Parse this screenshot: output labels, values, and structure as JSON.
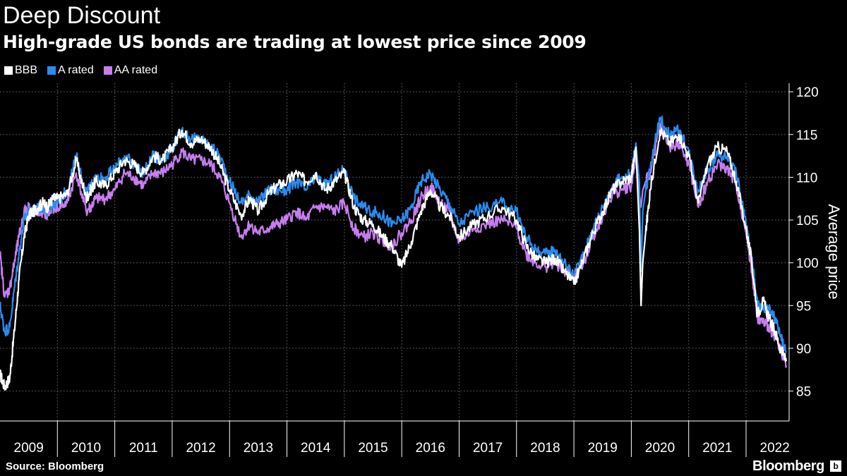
{
  "title": "Deep Discount",
  "subtitle": "High-grade US bonds are trading at lowest price since 2009",
  "source": "Source: Bloomberg",
  "brand": "Bloomberg",
  "brand_badge": "b",
  "chart_data": {
    "type": "line",
    "title": "Deep Discount",
    "subtitle": "High-grade US bonds are trading at lowest price since 2009",
    "xlabel": "",
    "ylabel": "Average price",
    "ylim": [
      81.5,
      121
    ],
    "xlim": [
      2009.0,
      2022.75
    ],
    "y_ticks": [
      85,
      90,
      95,
      100,
      105,
      110,
      115,
      120
    ],
    "x_ticks": [
      "2009",
      "2010",
      "2011",
      "2012",
      "2013",
      "2014",
      "2015",
      "2016",
      "2017",
      "2018",
      "2019",
      "2020",
      "2021",
      "2022"
    ],
    "grid": true,
    "legend_position": "top-left",
    "x": [
      2009.0,
      2009.08,
      2009.17,
      2009.25,
      2009.33,
      2009.42,
      2009.5,
      2009.58,
      2009.67,
      2009.75,
      2009.83,
      2009.92,
      2010.0,
      2010.17,
      2010.33,
      2010.5,
      2010.58,
      2010.67,
      2010.83,
      2011.0,
      2011.17,
      2011.33,
      2011.5,
      2011.67,
      2011.83,
      2012.0,
      2012.17,
      2012.33,
      2012.5,
      2012.67,
      2012.83,
      2013.0,
      2013.2,
      2013.35,
      2013.5,
      2013.67,
      2013.83,
      2014.0,
      2014.17,
      2014.33,
      2014.5,
      2014.67,
      2014.83,
      2015.0,
      2015.17,
      2015.33,
      2015.5,
      2015.67,
      2015.83,
      2016.0,
      2016.17,
      2016.33,
      2016.5,
      2016.67,
      2016.83,
      2017.0,
      2017.25,
      2017.5,
      2017.75,
      2018.0,
      2018.17,
      2018.33,
      2018.5,
      2018.67,
      2018.83,
      2019.0,
      2019.17,
      2019.33,
      2019.5,
      2019.67,
      2019.83,
      2020.0,
      2020.08,
      2020.14,
      2020.17,
      2020.2,
      2020.25,
      2020.33,
      2020.5,
      2020.67,
      2020.83,
      2021.0,
      2021.17,
      2021.33,
      2021.5,
      2021.67,
      2021.83,
      2022.0,
      2022.1,
      2022.2,
      2022.3,
      2022.4,
      2022.5,
      2022.6,
      2022.7
    ],
    "series": [
      {
        "name": "BBB",
        "color": "#ffffff",
        "values": [
          87.0,
          85.5,
          86.5,
          92.0,
          98.0,
          103.0,
          105.5,
          106.0,
          106.5,
          107.0,
          106.5,
          107.5,
          107.5,
          108.0,
          112.0,
          107.5,
          108.5,
          109.5,
          109.0,
          110.5,
          112.0,
          111.5,
          110.5,
          112.5,
          112.0,
          113.5,
          115.5,
          114.0,
          114.5,
          113.5,
          111.5,
          108.5,
          105.5,
          107.5,
          106.0,
          108.0,
          109.0,
          109.5,
          110.5,
          109.5,
          110.5,
          108.5,
          109.5,
          110.5,
          106.5,
          105.0,
          104.5,
          103.0,
          102.0,
          99.5,
          102.5,
          106.0,
          108.5,
          106.5,
          105.5,
          103.0,
          104.5,
          105.5,
          106.5,
          105.0,
          102.0,
          100.5,
          100.0,
          100.5,
          99.0,
          97.5,
          100.5,
          103.5,
          106.0,
          108.5,
          109.5,
          110.0,
          113.5,
          104.0,
          95.0,
          100.0,
          103.5,
          108.5,
          115.5,
          114.0,
          115.0,
          112.5,
          107.0,
          111.5,
          113.5,
          113.0,
          109.5,
          104.0,
          100.0,
          94.0,
          95.5,
          93.5,
          92.0,
          90.0,
          88.5
        ]
      },
      {
        "name": "A rated",
        "color": "#2a8cf0",
        "values": [
          95.0,
          92.0,
          92.5,
          97.0,
          101.0,
          105.0,
          106.0,
          106.0,
          106.5,
          106.5,
          106.0,
          107.0,
          107.0,
          108.5,
          112.5,
          108.0,
          109.0,
          110.0,
          110.0,
          111.0,
          112.5,
          111.5,
          110.5,
          112.5,
          112.0,
          113.5,
          115.5,
          114.5,
          114.5,
          113.5,
          112.5,
          109.5,
          107.0,
          108.0,
          107.0,
          108.5,
          108.5,
          108.5,
          109.5,
          108.5,
          110.0,
          109.0,
          110.0,
          111.0,
          107.5,
          106.5,
          106.0,
          105.5,
          104.5,
          105.0,
          106.5,
          109.5,
          110.5,
          108.5,
          107.0,
          104.5,
          106.0,
          106.5,
          107.0,
          106.0,
          103.0,
          101.5,
          101.0,
          101.5,
          100.0,
          98.5,
          101.0,
          104.0,
          106.5,
          109.0,
          110.0,
          110.5,
          114.0,
          109.5,
          99.0,
          106.0,
          108.5,
          111.0,
          117.0,
          115.0,
          115.5,
          113.0,
          108.5,
          111.0,
          112.5,
          112.5,
          110.5,
          104.5,
          100.5,
          95.0,
          94.5,
          94.5,
          93.5,
          91.5,
          89.5
        ]
      },
      {
        "name": "AA rated",
        "color": "#c77df0",
        "values": [
          101.0,
          96.0,
          97.0,
          100.0,
          103.0,
          106.0,
          106.5,
          106.0,
          106.0,
          106.0,
          105.5,
          106.5,
          106.5,
          107.0,
          110.5,
          106.0,
          106.5,
          107.5,
          107.5,
          108.5,
          110.5,
          110.0,
          109.0,
          110.5,
          110.5,
          111.5,
          113.0,
          112.0,
          112.0,
          111.5,
          110.0,
          107.0,
          103.0,
          104.5,
          103.5,
          104.0,
          104.5,
          105.0,
          106.0,
          105.0,
          106.5,
          106.5,
          106.0,
          107.0,
          104.0,
          103.0,
          103.5,
          102.5,
          102.0,
          103.5,
          105.0,
          107.5,
          109.0,
          107.0,
          106.0,
          102.5,
          104.0,
          104.5,
          105.0,
          104.0,
          101.0,
          100.0,
          99.5,
          100.0,
          99.0,
          98.5,
          100.0,
          103.0,
          105.5,
          108.0,
          108.5,
          109.0,
          112.5,
          108.0,
          106.5,
          108.5,
          109.5,
          110.5,
          116.0,
          113.5,
          114.0,
          111.5,
          106.5,
          109.5,
          111.5,
          111.0,
          109.0,
          103.5,
          99.0,
          93.5,
          93.0,
          92.5,
          91.5,
          90.0,
          88.0
        ]
      }
    ]
  }
}
